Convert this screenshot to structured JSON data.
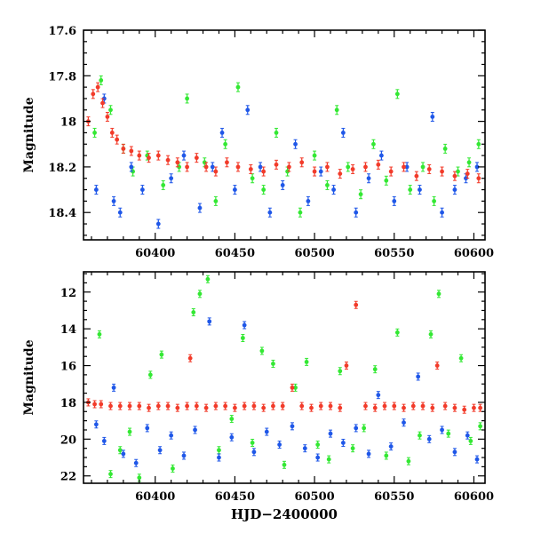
{
  "colors": {
    "series_green": "#33e833",
    "series_blue": "#1f57e8",
    "series_red": "#f23b2a",
    "frame": "#000000"
  },
  "chart_data": [
    {
      "type": "scatter",
      "panel": "top",
      "title": "",
      "xlabel": "",
      "ylabel": "Magnitude",
      "xlim": [
        60355,
        60607
      ],
      "ylim": [
        18.52,
        17.6
      ],
      "y_inverted": true,
      "x_ticks": [
        60400,
        60450,
        60500,
        60550,
        60600
      ],
      "x_tick_labels": [
        "60400",
        "60450",
        "60500",
        "60550",
        "60600"
      ],
      "y_ticks": [
        17.6,
        17.8,
        18.0,
        18.2,
        18.4
      ],
      "y_tick_labels": [
        "17.6",
        "17.8",
        "18",
        "18.2",
        "18.4"
      ],
      "grid": false,
      "legend": "none",
      "error_bars": true,
      "series": [
        {
          "color_key": "series_green",
          "x": [
            60362,
            60366,
            60372,
            60380,
            60386,
            60395,
            60405,
            60415,
            60420,
            60431,
            60438,
            60444,
            60452,
            60461,
            60468,
            60476,
            60483,
            60491,
            60500,
            60508,
            60514,
            60521,
            60529,
            60537,
            60545,
            60552,
            60560,
            60568,
            60575,
            60582,
            60590,
            60597,
            60603
          ],
          "y": [
            18.05,
            17.82,
            17.95,
            18.12,
            18.22,
            18.15,
            18.28,
            18.2,
            17.9,
            18.18,
            18.35,
            18.1,
            17.85,
            18.25,
            18.3,
            18.05,
            18.22,
            18.4,
            18.15,
            18.28,
            17.95,
            18.2,
            18.32,
            18.1,
            18.26,
            17.88,
            18.3,
            18.2,
            18.35,
            18.12,
            18.22,
            18.18,
            18.1
          ]
        },
        {
          "color_key": "series_blue",
          "x": [
            60363,
            60368,
            60374,
            60378,
            60385,
            60392,
            60402,
            60410,
            60418,
            60428,
            60436,
            60442,
            60450,
            60458,
            60466,
            60472,
            60480,
            60488,
            60496,
            60504,
            60512,
            60518,
            60526,
            60534,
            60542,
            60550,
            60558,
            60566,
            60574,
            60580,
            60588,
            60595,
            60602
          ],
          "y": [
            18.3,
            17.9,
            18.35,
            18.4,
            18.2,
            18.3,
            18.45,
            18.25,
            18.15,
            18.38,
            18.2,
            18.05,
            18.3,
            17.95,
            18.2,
            18.4,
            18.28,
            18.1,
            18.35,
            18.22,
            18.3,
            18.05,
            18.4,
            18.25,
            18.15,
            18.35,
            18.2,
            18.3,
            17.98,
            18.4,
            18.3,
            18.25,
            18.2
          ]
        },
        {
          "color_key": "series_red",
          "x": [
            60358,
            60361,
            60364,
            60367,
            60370,
            60373,
            60376,
            60380,
            60385,
            60390,
            60396,
            60402,
            60408,
            60414,
            60420,
            60426,
            60432,
            60438,
            60445,
            60452,
            60460,
            60468,
            60476,
            60484,
            60492,
            60500,
            60508,
            60516,
            60524,
            60532,
            60540,
            60548,
            60556,
            60564,
            60572,
            60580,
            60588,
            60596,
            60603
          ],
          "y": [
            18.0,
            17.88,
            17.85,
            17.92,
            17.98,
            18.05,
            18.08,
            18.12,
            18.13,
            18.15,
            18.16,
            18.15,
            18.17,
            18.18,
            18.2,
            18.16,
            18.2,
            18.22,
            18.18,
            18.2,
            18.21,
            18.22,
            18.19,
            18.2,
            18.18,
            18.22,
            18.2,
            18.23,
            18.21,
            18.2,
            18.19,
            18.22,
            18.2,
            18.24,
            18.21,
            18.22,
            18.24,
            18.23,
            18.25
          ]
        }
      ]
    },
    {
      "type": "scatter",
      "panel": "bottom",
      "title": "",
      "xlabel": "HJD−2400000",
      "ylabel": "Magnitude",
      "xlim": [
        60355,
        60607
      ],
      "ylim": [
        22.4,
        10.9
      ],
      "y_inverted": true,
      "x_ticks": [
        60400,
        60450,
        60500,
        60550,
        60600
      ],
      "x_tick_labels": [
        "60400",
        "60450",
        "60500",
        "60550",
        "60600"
      ],
      "y_ticks": [
        12,
        14,
        16,
        18,
        20,
        22
      ],
      "y_tick_labels": [
        "12",
        "14",
        "16",
        "18",
        "20",
        "22"
      ],
      "grid": false,
      "legend": "none",
      "error_bars": true,
      "series": [
        {
          "color_key": "series_green",
          "x": [
            60365,
            60372,
            60378,
            60384,
            60390,
            60397,
            60404,
            60411,
            60424,
            60428,
            60433,
            60440,
            60448,
            60455,
            60461,
            60467,
            60474,
            60481,
            60488,
            60495,
            60502,
            60509,
            60516,
            60524,
            60531,
            60538,
            60545,
            60552,
            60559,
            60566,
            60573,
            60578,
            60584,
            60592,
            60598,
            60604
          ],
          "y": [
            14.3,
            21.9,
            20.6,
            19.6,
            22.1,
            16.5,
            15.4,
            21.6,
            13.1,
            12.1,
            11.3,
            20.6,
            18.9,
            14.5,
            20.2,
            15.2,
            15.9,
            21.4,
            17.2,
            15.8,
            20.3,
            21.1,
            16.3,
            20.5,
            19.4,
            16.2,
            20.9,
            14.2,
            21.2,
            19.8,
            14.3,
            12.1,
            19.7,
            15.6,
            20.1,
            19.3
          ]
        },
        {
          "color_key": "series_blue",
          "x": [
            60363,
            60368,
            60374,
            60380,
            60388,
            60395,
            60403,
            60410,
            60418,
            60425,
            60434,
            60440,
            60448,
            60456,
            60462,
            60470,
            60478,
            60486,
            60494,
            60502,
            60510,
            60518,
            60526,
            60534,
            60540,
            60548,
            60556,
            60565,
            60572,
            60580,
            60588,
            60596,
            60602
          ],
          "y": [
            19.2,
            20.1,
            17.2,
            20.8,
            21.3,
            19.4,
            20.6,
            19.8,
            20.9,
            19.5,
            13.6,
            21.0,
            19.9,
            13.8,
            20.7,
            19.6,
            20.3,
            19.3,
            20.5,
            21.0,
            19.7,
            20.2,
            19.4,
            20.8,
            17.6,
            20.4,
            19.1,
            16.6,
            20.0,
            19.5,
            20.7,
            19.8,
            21.1
          ]
        },
        {
          "color_key": "series_red",
          "x": [
            60358,
            60362,
            60366,
            60372,
            60378,
            60384,
            60390,
            60396,
            60402,
            60408,
            60414,
            60420,
            60422,
            60426,
            60432,
            60438,
            60444,
            60450,
            60456,
            60462,
            60468,
            60474,
            60480,
            60486,
            60492,
            60498,
            60504,
            60510,
            60516,
            60520,
            60526,
            60532,
            60538,
            60544,
            60550,
            60556,
            60562,
            60568,
            60574,
            60577,
            60582,
            60588,
            60594,
            60600,
            60604
          ],
          "y": [
            18.0,
            18.1,
            18.1,
            18.2,
            18.2,
            18.2,
            18.2,
            18.3,
            18.2,
            18.2,
            18.3,
            18.2,
            15.6,
            18.2,
            18.3,
            18.2,
            18.2,
            18.3,
            18.2,
            18.2,
            18.3,
            18.2,
            18.2,
            17.2,
            18.2,
            18.3,
            18.2,
            18.2,
            18.3,
            16.0,
            12.7,
            18.2,
            18.3,
            18.2,
            18.2,
            18.3,
            18.2,
            18.2,
            18.3,
            16.0,
            18.2,
            18.3,
            18.4,
            18.3,
            18.3
          ]
        }
      ]
    }
  ]
}
